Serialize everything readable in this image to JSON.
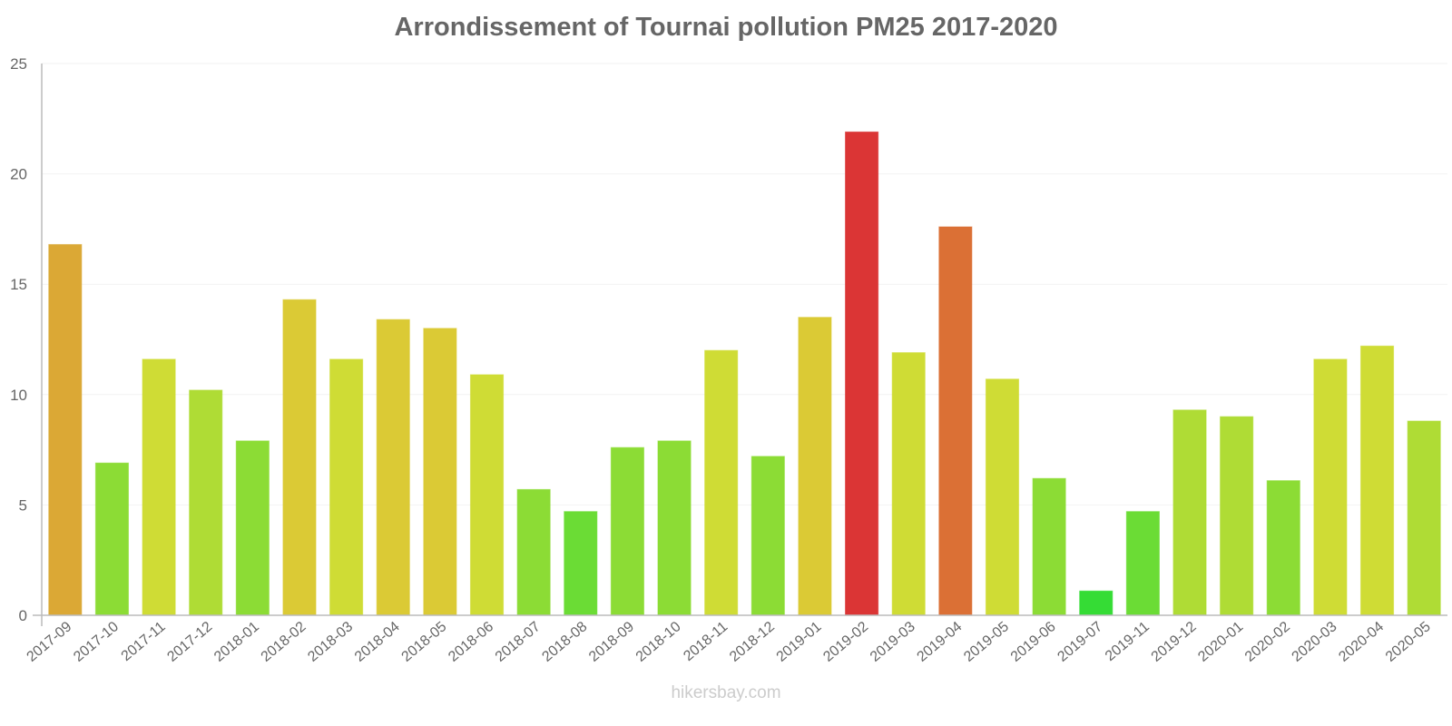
{
  "chart_data": {
    "type": "bar",
    "title": "Arrondissement of Tournai pollution PM25 2017-2020",
    "xlabel": "",
    "ylabel": "",
    "ylim": [
      0,
      25
    ],
    "yticks": [
      0,
      5,
      10,
      15,
      20,
      25
    ],
    "grid": true,
    "legend": null,
    "categories": [
      "2017-09",
      "2017-10",
      "2017-11",
      "2017-12",
      "2018-01",
      "2018-02",
      "2018-03",
      "2018-04",
      "2018-05",
      "2018-06",
      "2018-07",
      "2018-08",
      "2018-09",
      "2018-10",
      "2018-11",
      "2018-12",
      "2019-01",
      "2019-02",
      "2019-03",
      "2019-04",
      "2019-05",
      "2019-06",
      "2019-07",
      "2019-11",
      "2019-12",
      "2020-01",
      "2020-02",
      "2020-03",
      "2020-04",
      "2020-05"
    ],
    "values": [
      16.8,
      6.9,
      11.6,
      10.2,
      7.9,
      14.3,
      11.6,
      13.4,
      13.0,
      10.9,
      5.7,
      4.7,
      7.6,
      7.9,
      12.0,
      7.2,
      13.5,
      21.9,
      11.9,
      17.6,
      10.7,
      6.2,
      1.1,
      4.7,
      9.3,
      9.0,
      6.1,
      11.6,
      12.2,
      8.8
    ],
    "colors": [
      "#dba835",
      "#8cdc35",
      "#cfdc35",
      "#afdc35",
      "#8cdc35",
      "#dbca35",
      "#cfdc35",
      "#dbca35",
      "#dbca35",
      "#cfdc35",
      "#8cdc35",
      "#6bdc35",
      "#8cdc35",
      "#8cdc35",
      "#cfdc35",
      "#8cdc35",
      "#dbca35",
      "#db3535",
      "#cfdc35",
      "#db7035",
      "#cfdc35",
      "#8cdc35",
      "#35dc35",
      "#6bdc35",
      "#afdc35",
      "#afdc35",
      "#8cdc35",
      "#cfdc35",
      "#cfdc35",
      "#afdc35"
    ]
  },
  "watermark": "hikersbay.com",
  "style": {
    "axis_color": "#bbbbbb",
    "grid_color": "#f2f2f2",
    "label_color": "#666666"
  }
}
